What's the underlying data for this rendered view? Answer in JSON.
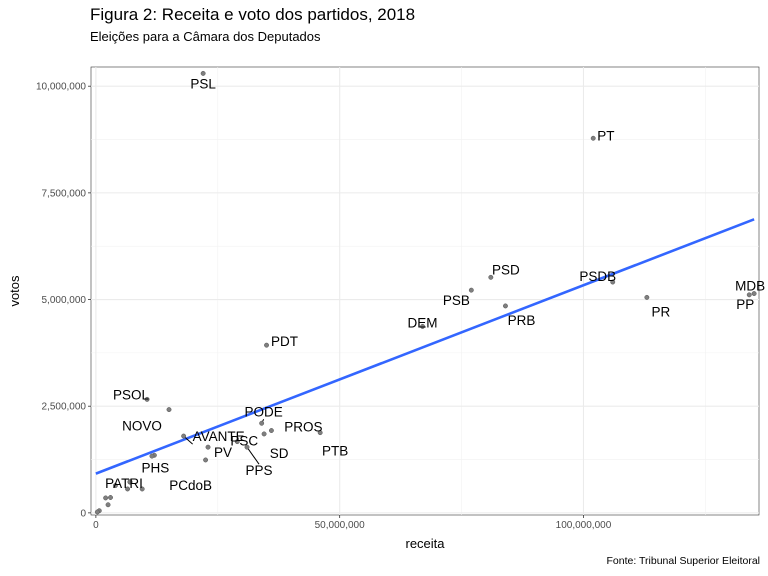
{
  "chart_data": {
    "type": "scatter",
    "title": "Figura 2: Receita e voto dos partidos, 2018",
    "subtitle": "Eleições para a Câmara dos Deputados",
    "caption": "Fonte: Tribunal Superior Eleitoral",
    "xlabel": "receita",
    "ylabel": "votos",
    "xlim": [
      -1000000,
      136000000
    ],
    "ylim": [
      -50000,
      10450000
    ],
    "xticks": [
      0,
      50000000,
      100000000
    ],
    "xtick_labels": [
      "0",
      "50,000,000",
      "100,000,000"
    ],
    "yticks": [
      0,
      2500000,
      5000000,
      7500000,
      10000000
    ],
    "ytick_labels": [
      "0",
      "2,500,000",
      "5,000,000",
      "7,500,000",
      "10,000,000"
    ],
    "grid": true,
    "trend_line": {
      "color": "#3366ff",
      "x": [
        0,
        135000000
      ],
      "y": [
        920000,
        6880000
      ]
    },
    "points": [
      {
        "label": "PSL",
        "x": 22000000,
        "y": 10300000
      },
      {
        "label": "PT",
        "x": 102000000,
        "y": 8780000
      },
      {
        "label": "MDB",
        "x": 135000000,
        "y": 5140000
      },
      {
        "label": "PP",
        "x": 134000000,
        "y": 5110000
      },
      {
        "label": "PSDB",
        "x": 106000000,
        "y": 5410000
      },
      {
        "label": "PR",
        "x": 113000000,
        "y": 5050000
      },
      {
        "label": "PSD",
        "x": 81000000,
        "y": 5520000
      },
      {
        "label": "PSB",
        "x": 77000000,
        "y": 5220000
      },
      {
        "label": "PRB",
        "x": 84000000,
        "y": 4850000
      },
      {
        "label": "DEM",
        "x": 67000000,
        "y": 4370000
      },
      {
        "label": "PDT",
        "x": 35000000,
        "y": 3930000
      },
      {
        "label": "PSOL",
        "x": 10500000,
        "y": 2660000
      },
      {
        "label": "NOVO",
        "x": 15000000,
        "y": 2420000
      },
      {
        "label": "AVANTE",
        "x": 18000000,
        "y": 1800000
      },
      {
        "label": "PODE",
        "x": 34000000,
        "y": 2100000
      },
      {
        "label": "PROS",
        "x": 36000000,
        "y": 1930000
      },
      {
        "label": "PTB",
        "x": 46000000,
        "y": 1880000
      },
      {
        "label": "PSC",
        "x": 29000000,
        "y": 1670000
      },
      {
        "label": "SD",
        "x": 34500000,
        "y": 1850000
      },
      {
        "label": "PPS",
        "x": 31000000,
        "y": 1540000
      },
      {
        "label": "PV",
        "x": 23000000,
        "y": 1540000
      },
      {
        "label": "PCdoB",
        "x": 22500000,
        "y": 1240000
      },
      {
        "label": "PHS",
        "x": 12000000,
        "y": 1350000
      },
      {
        "label": "PATRI",
        "x": 7000000,
        "y": 720000
      },
      {
        "label": "",
        "x": 11500000,
        "y": 1330000
      },
      {
        "label": "",
        "x": 7000000,
        "y": 730000
      },
      {
        "label": "",
        "x": 6500000,
        "y": 560000
      },
      {
        "label": "",
        "x": 9500000,
        "y": 560000
      },
      {
        "label": "",
        "x": 4000000,
        "y": 640000
      },
      {
        "label": "",
        "x": 3000000,
        "y": 360000
      },
      {
        "label": "",
        "x": 2000000,
        "y": 350000
      },
      {
        "label": "",
        "x": 2500000,
        "y": 190000
      },
      {
        "label": "",
        "x": 700000,
        "y": 50000
      },
      {
        "label": "",
        "x": 300000,
        "y": 20000
      }
    ]
  }
}
